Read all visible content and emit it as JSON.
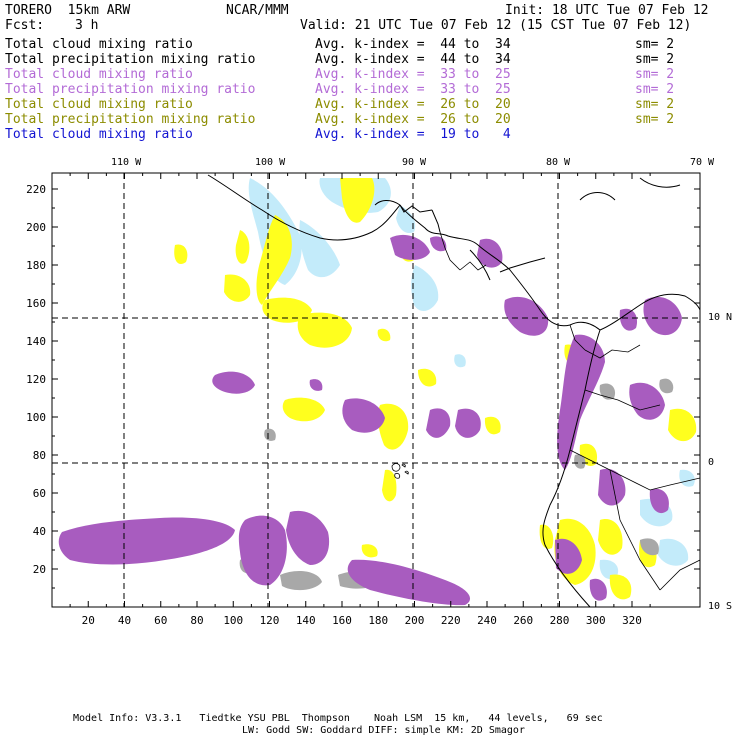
{
  "header": {
    "model": "TORERO  15km ARW",
    "org": "NCAR/MMM",
    "init": "Init: 18 UTC Tue 07 Feb 12",
    "fcst_label": "Fcst:",
    "fcst_value": "3 h",
    "valid": "Valid: 21 UTC Tue 07 Feb 12 (15 CST Tue 07 Feb 12)"
  },
  "legend": [
    {
      "field": "Total cloud mixing ratio",
      "index": "Avg. k-index =  44 to  34",
      "sm": "sm= 2",
      "color": "#000000"
    },
    {
      "field": "Total precipitation mixing ratio",
      "index": "Avg. k-index =  44 to  34",
      "sm": "sm= 2",
      "color": "#000000"
    },
    {
      "field": "Total cloud mixing ratio",
      "index": "Avg. k-index =  33 to  25",
      "sm": "sm= 2",
      "color": "#b36bd6"
    },
    {
      "field": "Total precipitation mixing ratio",
      "index": "Avg. k-index =  33 to  25",
      "sm": "sm= 2",
      "color": "#b36bd6"
    },
    {
      "field": "Total cloud mixing ratio",
      "index": "Avg. k-index =  26 to  20",
      "sm": "sm= 2",
      "color": "#8c8c00"
    },
    {
      "field": "Total precipitation mixing ratio",
      "index": "Avg. k-index =  26 to  20",
      "sm": "sm= 2",
      "color": "#8c8c00"
    },
    {
      "field": "Total cloud mixing ratio",
      "index": "Avg. k-index =  19 to   4",
      "sm": "",
      "color": "#1414d2"
    }
  ],
  "map": {
    "lon_labels": [
      "110 W",
      "100 W",
      "90 W",
      "80 W",
      "70 W"
    ],
    "lat_labels": [
      "10 N",
      "0",
      "10 S"
    ],
    "x_ticks": [
      "20",
      "40",
      "60",
      "80",
      "100",
      "120",
      "140",
      "160",
      "180",
      "200",
      "220",
      "240",
      "260",
      "280",
      "300",
      "320"
    ],
    "y_ticks": [
      "20",
      "40",
      "60",
      "80",
      "100",
      "120",
      "140",
      "160",
      "180",
      "200",
      "220"
    ],
    "colors": {
      "gray": "#a8a8a8",
      "purple": "#a85cbf",
      "yellow": "#ffff1e",
      "light_blue": "#c3ebfa"
    }
  },
  "footer": {
    "line1": "Model Info: V3.3.1   Tiedtke YSU PBL  Thompson    Noah LSM  15 km,   44 levels,   69 sec",
    "line2": "LW: Godd SW: Goddard DIFF: simple KM: 2D Smagor"
  }
}
